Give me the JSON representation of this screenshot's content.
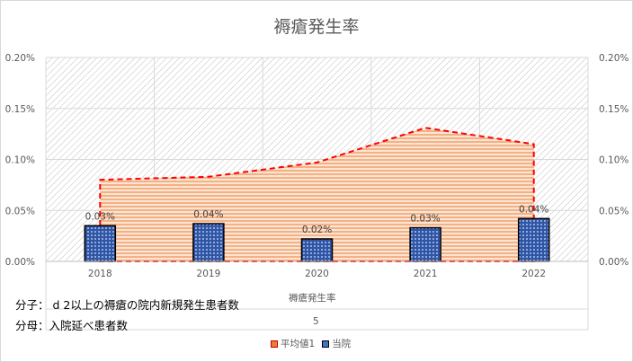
{
  "chart_data": {
    "type": "bar",
    "title": "褥瘡発生率",
    "categories": [
      "2018",
      "2019",
      "2020",
      "2021",
      "2022"
    ],
    "ylim": [
      0,
      0.002
    ],
    "yticks": [
      "0.00%",
      "0.05%",
      "0.10%",
      "0.15%",
      "0.20%"
    ],
    "grid": true,
    "legend_position": "bottom",
    "series": [
      {
        "name": "平均値1",
        "type": "area",
        "values": [
          0.0008,
          0.00083,
          0.00097,
          0.00131,
          0.00115
        ],
        "color": "#ed7d31",
        "line_color": "#ff0000"
      },
      {
        "name": "当院",
        "type": "bar",
        "values": [
          0.0003,
          0.0004,
          0.0002,
          0.0003,
          0.0004
        ],
        "bar_values": [
          0.00035,
          0.00037,
          0.00022,
          0.00033,
          0.00042
        ],
        "labels": [
          "0.03%",
          "0.04%",
          "0.02%",
          "0.03%",
          "0.04%"
        ],
        "color": "#4472c4"
      }
    ]
  },
  "notes": {
    "numerator": "分子： d 2以上の褥瘡の院内新規発生患者数",
    "denominator": "分母：入院延べ患者数"
  },
  "data_table": {
    "header": "褥瘡発生率",
    "value": "5"
  },
  "legend": {
    "avg_label": "平均値1",
    "hospital_label": "当院"
  }
}
